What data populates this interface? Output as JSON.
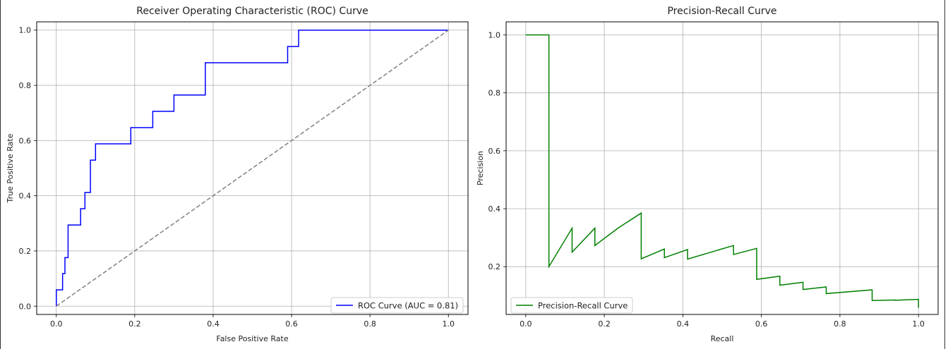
{
  "roc": {
    "title": "Receiver Operating Characteristic (ROC) Curve",
    "xlabel": "False Positive Rate",
    "ylabel": "True Positive Rate",
    "legend": "ROC Curve (AUC = 0.81)",
    "xticks": [
      "0.0",
      "0.2",
      "0.4",
      "0.6",
      "0.8",
      "1.0"
    ],
    "yticks": [
      "0.0",
      "0.2",
      "0.4",
      "0.6",
      "0.8",
      "1.0"
    ]
  },
  "pr": {
    "title": "Precision-Recall Curve",
    "xlabel": "Recall",
    "ylabel": "Precision",
    "legend": "Precision-Recall Curve",
    "xticks": [
      "0.0",
      "0.2",
      "0.4",
      "0.6",
      "0.8",
      "1.0"
    ],
    "yticks": [
      "0.2",
      "0.4",
      "0.6",
      "0.8",
      "1.0"
    ]
  },
  "chart_data": [
    {
      "type": "line",
      "title": "Receiver Operating Characteristic (ROC) Curve",
      "xlabel": "False Positive Rate",
      "ylabel": "True Positive Rate",
      "xlim": [
        -0.05,
        1.05
      ],
      "ylim": [
        -0.03,
        1.03
      ],
      "grid": true,
      "legend_position": "bottom-right",
      "series": [
        {
          "name": "ROC Curve (AUC = 0.81)",
          "color": "#0000ff",
          "style": "solid",
          "x": [
            0.0,
            0.0,
            0.016,
            0.016,
            0.022,
            0.022,
            0.03,
            0.03,
            0.062,
            0.062,
            0.073,
            0.073,
            0.087,
            0.087,
            0.1,
            0.1,
            0.19,
            0.19,
            0.246,
            0.246,
            0.3,
            0.3,
            0.38,
            0.38,
            0.59,
            0.59,
            0.618,
            0.618,
            1.0
          ],
          "y": [
            0.0,
            0.059,
            0.059,
            0.118,
            0.118,
            0.176,
            0.176,
            0.294,
            0.294,
            0.353,
            0.353,
            0.412,
            0.412,
            0.529,
            0.529,
            0.588,
            0.588,
            0.647,
            0.647,
            0.706,
            0.706,
            0.765,
            0.765,
            0.882,
            0.882,
            0.941,
            0.941,
            1.0,
            1.0
          ]
        },
        {
          "name": "",
          "color": "#808080",
          "style": "dashed",
          "x": [
            0.0,
            1.0
          ],
          "y": [
            0.0,
            1.0
          ]
        }
      ]
    },
    {
      "type": "line",
      "title": "Precision-Recall Curve",
      "xlabel": "Recall",
      "ylabel": "Precision",
      "xlim": [
        -0.05,
        1.05
      ],
      "ylim": [
        0.035,
        1.045
      ],
      "grid": true,
      "legend_position": "bottom-left",
      "series": [
        {
          "name": "Precision-Recall Curve",
          "color": "#008000",
          "style": "solid",
          "x": [
            0.0,
            0.059,
            0.059,
            0.118,
            0.118,
            0.176,
            0.176,
            0.235,
            0.294,
            0.294,
            0.353,
            0.353,
            0.412,
            0.412,
            0.529,
            0.529,
            0.588,
            0.588,
            0.647,
            0.647,
            0.706,
            0.706,
            0.765,
            0.765,
            0.882,
            0.882,
            0.941,
            0.941,
            1.0,
            1.0
          ],
          "y": [
            1.0,
            1.0,
            0.2,
            0.333,
            0.25,
            0.333,
            0.273,
            0.333,
            0.385,
            0.227,
            0.261,
            0.231,
            0.259,
            0.226,
            0.273,
            0.242,
            0.263,
            0.156,
            0.167,
            0.136,
            0.146,
            0.121,
            0.13,
            0.107,
            0.12,
            0.083,
            0.085,
            0.084,
            0.087,
            0.058
          ]
        }
      ]
    }
  ]
}
